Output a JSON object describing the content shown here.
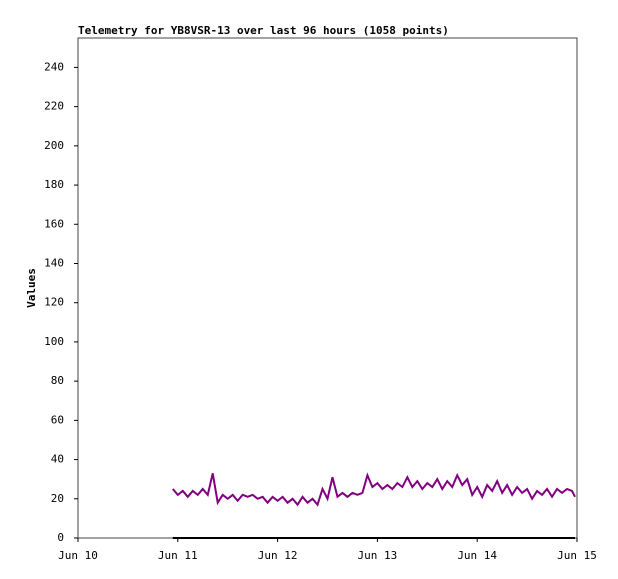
{
  "chart_data": {
    "type": "line",
    "title": "Telemetry for YB8VSR-13 over last 96 hours (1058 points)",
    "ylabel": "Values",
    "xlim": [
      10,
      15
    ],
    "xticks": [
      {
        "value": 10,
        "label": "Jun 10"
      },
      {
        "value": 11,
        "label": "Jun 11"
      },
      {
        "value": 12,
        "label": "Jun 12"
      },
      {
        "value": 13,
        "label": "Jun 13"
      },
      {
        "value": 14,
        "label": "Jun 14"
      },
      {
        "value": 15,
        "label": "Jun 15"
      }
    ],
    "ylim": [
      0,
      255
    ],
    "yticks": [
      0,
      20,
      40,
      60,
      80,
      100,
      120,
      140,
      160,
      180,
      200,
      220,
      240
    ],
    "series": [
      {
        "color": "#800080",
        "x": [
          10.95,
          11.0,
          11.05,
          11.1,
          11.15,
          11.2,
          11.25,
          11.3,
          11.35,
          11.4,
          11.45,
          11.5,
          11.55,
          11.6,
          11.65,
          11.7,
          11.75,
          11.8,
          11.85,
          11.9,
          11.95,
          12.0,
          12.05,
          12.1,
          12.15,
          12.2,
          12.25,
          12.3,
          12.35,
          12.4,
          12.45,
          12.5,
          12.55,
          12.6,
          12.65,
          12.7,
          12.75,
          12.8,
          12.85,
          12.9,
          12.95,
          13.0,
          13.05,
          13.1,
          13.15,
          13.2,
          13.25,
          13.3,
          13.35,
          13.4,
          13.45,
          13.5,
          13.55,
          13.6,
          13.65,
          13.7,
          13.75,
          13.8,
          13.85,
          13.9,
          13.95,
          14.0,
          14.05,
          14.1,
          14.15,
          14.2,
          14.25,
          14.3,
          14.35,
          14.4,
          14.45,
          14.5,
          14.55,
          14.6,
          14.65,
          14.7,
          14.75,
          14.8,
          14.85,
          14.9,
          14.95,
          14.98
        ],
        "values": [
          25,
          22,
          24,
          21,
          24,
          22,
          25,
          22,
          33,
          18,
          22,
          20,
          22,
          19,
          22,
          21,
          22,
          20,
          21,
          18,
          21,
          19,
          21,
          18,
          20,
          17,
          21,
          18,
          20,
          17,
          25,
          20,
          31,
          21,
          23,
          21,
          23,
          22,
          23,
          32,
          26,
          28,
          25,
          27,
          25,
          28,
          26,
          31,
          26,
          29,
          25,
          28,
          26,
          30,
          25,
          29,
          26,
          32,
          27,
          30,
          22,
          26,
          21,
          27,
          24,
          29,
          23,
          27,
          22,
          26,
          23,
          25,
          20,
          24,
          22,
          25,
          21,
          25,
          23,
          25,
          24,
          21
        ]
      },
      {
        "color": "#000000",
        "x": [
          10.95,
          14.98
        ],
        "values": [
          0,
          0
        ]
      }
    ]
  }
}
